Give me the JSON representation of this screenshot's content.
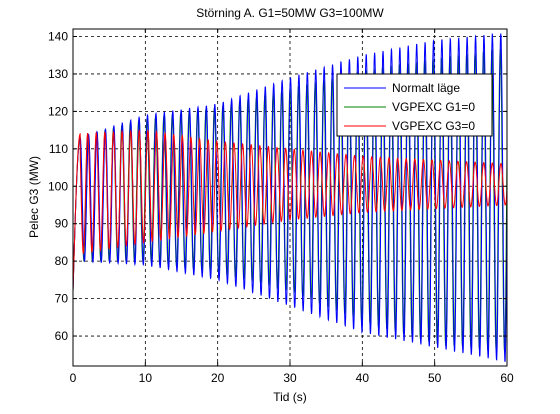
{
  "chart_data": {
    "type": "line",
    "title": "Störning A. G1=50MW G3=100MW",
    "xlabel": "Tid (s)",
    "ylabel": "Pelec G3 (MW)",
    "xlim": [
      0,
      60
    ],
    "ylim": [
      52,
      142
    ],
    "xticks": [
      0,
      10,
      20,
      30,
      40,
      50,
      60
    ],
    "yticks": [
      60,
      70,
      80,
      90,
      100,
      110,
      120,
      130,
      140
    ],
    "grid": true,
    "legend_position": "top-right",
    "series": [
      {
        "name": "Normalt läge",
        "color": "#0000ff",
        "start_value": 72,
        "envelope": [
          [
            1,
            80,
            113
          ],
          [
            10,
            79,
            119
          ],
          [
            20,
            75,
            122
          ],
          [
            30,
            68,
            129
          ],
          [
            40,
            61,
            135
          ],
          [
            50,
            57,
            139
          ],
          [
            60,
            53,
            141
          ]
        ]
      },
      {
        "name": "VGPEXC G1=0",
        "color": "#008000",
        "start_value": 72,
        "envelope": [
          [
            1,
            80,
            113
          ],
          [
            10,
            80,
            118
          ],
          [
            20,
            77,
            121
          ],
          [
            30,
            72,
            126
          ],
          [
            40,
            64,
            131
          ],
          [
            50,
            58,
            134
          ],
          [
            60,
            56,
            137
          ]
        ]
      },
      {
        "name": "VGPEXC G3=0",
        "color": "#ff0000",
        "start_value": 72,
        "envelope": [
          [
            1,
            82,
            114
          ],
          [
            10,
            85,
            115
          ],
          [
            20,
            88,
            112
          ],
          [
            30,
            91,
            110
          ],
          [
            40,
            93,
            108
          ],
          [
            50,
            94,
            107
          ],
          [
            60,
            95,
            106
          ]
        ]
      }
    ]
  }
}
